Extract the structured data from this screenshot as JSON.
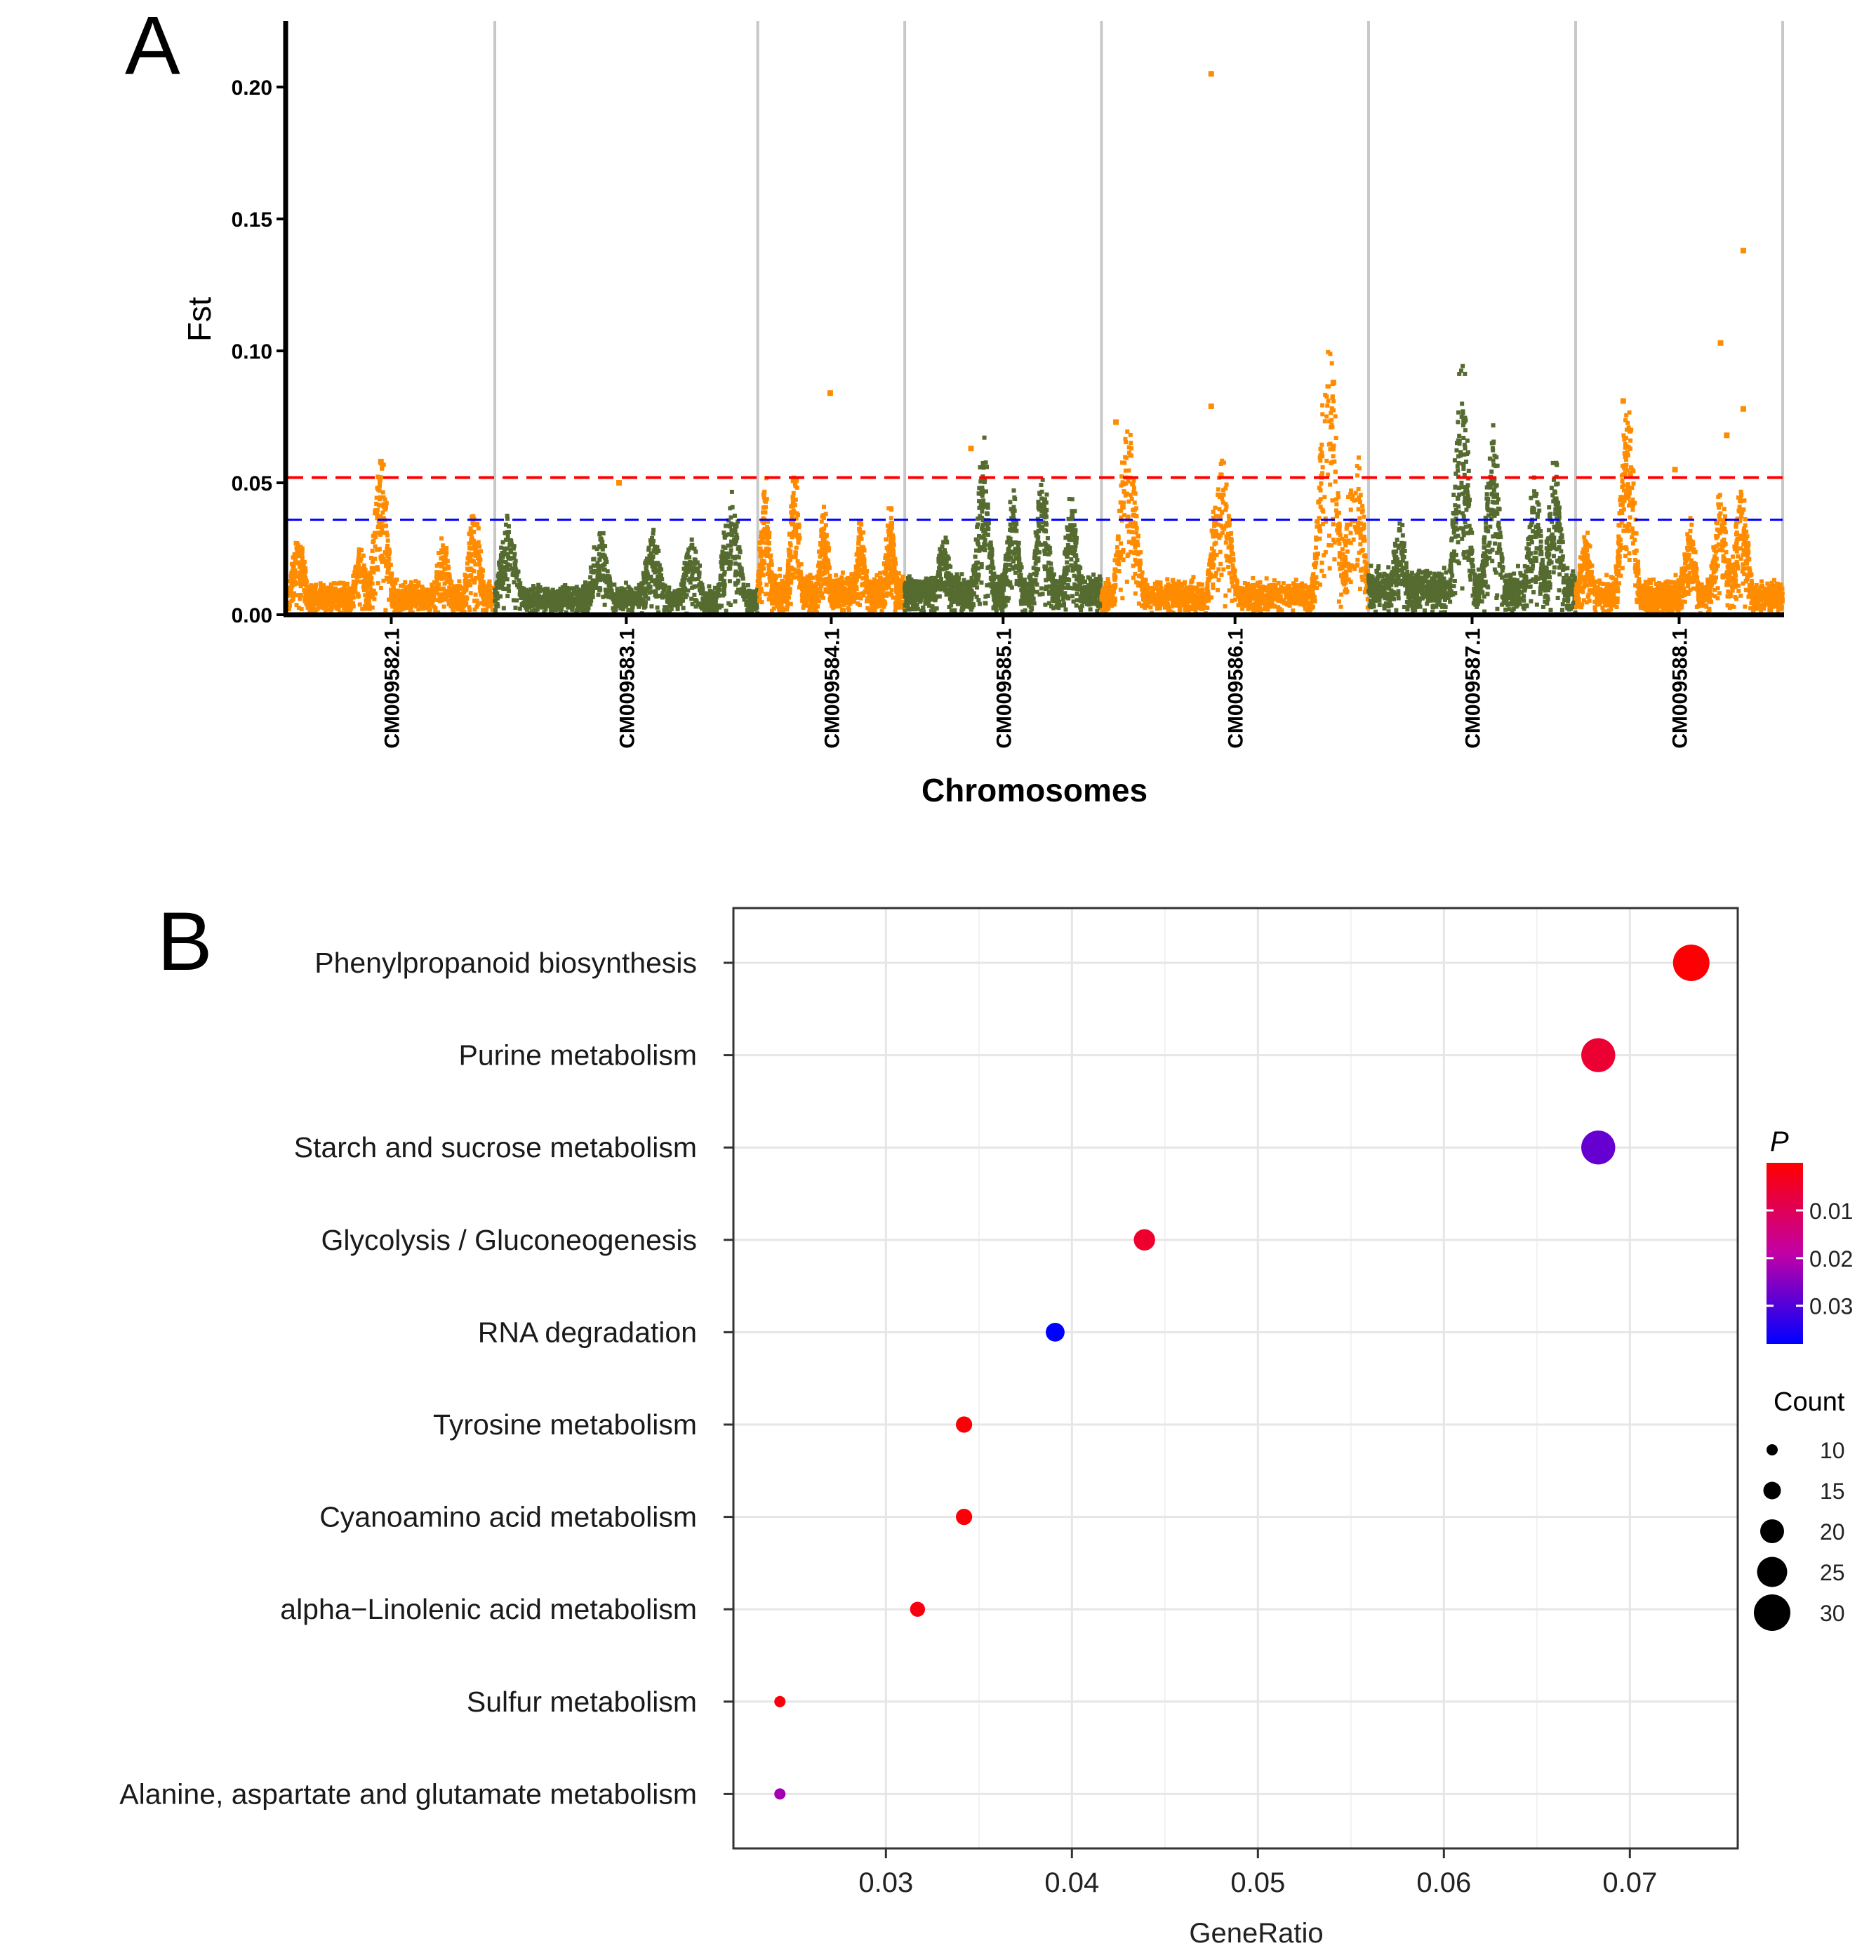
{
  "chart_data": [
    {
      "panel": "A",
      "type": "scatter",
      "subtype": "manhattan",
      "xlabel": "Chromosomes",
      "ylabel": "Fst",
      "ylim": [
        0,
        0.225
      ],
      "y_ticks": [
        "0.00",
        "0.05",
        "0.10",
        "0.15",
        "0.20"
      ],
      "y_tick_values": [
        0,
        0.05,
        0.1,
        0.15,
        0.2
      ],
      "thresholds": [
        {
          "name": "upper-threshold",
          "value": 0.052,
          "color": "#ff0000"
        },
        {
          "name": "lower-threshold",
          "value": 0.036,
          "color": "#0000ff"
        }
      ],
      "colors": {
        "odd": "#ff8c00",
        "even": "#556b2f"
      },
      "chromosomes": [
        {
          "name": "CM009582.1",
          "start": 0,
          "end": 1,
          "base": 0.007,
          "peaks": [
            [
              0.05,
              0.03
            ],
            [
              0.35,
              0.025
            ],
            [
              0.45,
              0.06
            ],
            [
              0.75,
              0.028
            ],
            [
              0.9,
              0.04
            ]
          ]
        },
        {
          "name": "CM009583.1",
          "start": 1,
          "end": 2.27,
          "base": 0.006,
          "peaks": [
            [
              0.05,
              0.035
            ],
            [
              0.4,
              0.032
            ],
            [
              0.6,
              0.03
            ],
            [
              0.75,
              0.028
            ],
            [
              0.9,
              0.045
            ]
          ]
        },
        {
          "name": "CM009584.1",
          "start": 2.27,
          "end": 2.98,
          "base": 0.01,
          "peaks": [
            [
              0.05,
              0.05
            ],
            [
              0.25,
              0.055
            ],
            [
              0.45,
              0.04
            ],
            [
              0.7,
              0.035
            ],
            [
              0.9,
              0.04
            ]
          ]
        },
        {
          "name": "CM009585.1",
          "start": 2.98,
          "end": 3.93,
          "base": 0.01,
          "peaks": [
            [
              0.2,
              0.03
            ],
            [
              0.4,
              0.062
            ],
            [
              0.55,
              0.045
            ],
            [
              0.7,
              0.055
            ],
            [
              0.85,
              0.045
            ]
          ]
        },
        {
          "name": "CM009586.1",
          "start": 3.93,
          "end": 5.22,
          "base": 0.008,
          "peaks": [
            [
              0.1,
              0.07
            ],
            [
              0.45,
              0.06
            ],
            [
              0.85,
              0.105
            ],
            [
              0.95,
              0.06
            ]
          ]
        },
        {
          "name": "CM009587.1",
          "start": 5.22,
          "end": 6.22,
          "base": 0.012,
          "peaks": [
            [
              0.15,
              0.035
            ],
            [
              0.45,
              0.098
            ],
            [
              0.6,
              0.07
            ],
            [
              0.8,
              0.05
            ],
            [
              0.9,
              0.057
            ]
          ]
        },
        {
          "name": "CM009588.1",
          "start": 6.22,
          "end": 7.22,
          "base": 0.008,
          "peaks": [
            [
              0.05,
              0.03
            ],
            [
              0.25,
              0.08
            ],
            [
              0.55,
              0.035
            ],
            [
              0.7,
              0.045
            ],
            [
              0.8,
              0.05
            ]
          ]
        }
      ],
      "outliers": [
        [
          0.45,
          0.058
        ],
        [
          1.6,
          0.05
        ],
        [
          2.62,
          0.084
        ],
        [
          3.3,
          0.063
        ],
        [
          4.0,
          0.073
        ],
        [
          4.46,
          0.205
        ],
        [
          4.46,
          0.079
        ],
        [
          5.05,
          0.088
        ],
        [
          6.45,
          0.081
        ],
        [
          6.7,
          0.055
        ],
        [
          6.92,
          0.103
        ],
        [
          7.03,
          0.138
        ],
        [
          7.03,
          0.078
        ],
        [
          6.95,
          0.068
        ]
      ]
    },
    {
      "panel": "B",
      "type": "scatter",
      "subtype": "dot-plot",
      "xlabel": "GeneRatio",
      "ylabel": "",
      "xlim": [
        0.0218,
        0.0758
      ],
      "x_ticks": [
        "0.03",
        "0.04",
        "0.05",
        "0.06",
        "0.07"
      ],
      "x_tick_values": [
        0.03,
        0.04,
        0.05,
        0.06,
        0.07
      ],
      "categories": [
        "Phenylpropanoid biosynthesis",
        "Purine metabolism",
        "Starch and sucrose metabolism",
        "Glycolysis / Gluconeogenesis",
        "RNA degradation",
        "Tyrosine metabolism",
        "Cyanoamino acid metabolism",
        "alpha−Linolenic acid metabolism",
        "Sulfur metabolism",
        "Alanine, aspartate and glutamate metabolism"
      ],
      "gene_ratio": [
        0.0733,
        0.0683,
        0.0683,
        0.0439,
        0.0391,
        0.0342,
        0.0342,
        0.0317,
        0.0243,
        0.0243
      ],
      "count": [
        30,
        28,
        28,
        18,
        16,
        14,
        14,
        13,
        10,
        10
      ],
      "p_value": [
        0.0005,
        0.006,
        0.028,
        0.005,
        0.038,
        0.001,
        0.001,
        0.002,
        0.001,
        0.022
      ],
      "legend_color": {
        "title": "P",
        "ticks": [
          "0.01",
          "0.02",
          "0.03"
        ],
        "tick_values": [
          0.01,
          0.02,
          0.03
        ],
        "range": [
          0.0,
          0.038
        ],
        "low_color": "#ff0000",
        "high_color": "#0000ff"
      },
      "legend_size": {
        "title": "Count",
        "labels": [
          "10",
          "15",
          "20",
          "25",
          "30"
        ],
        "values": [
          10,
          15,
          20,
          25,
          30
        ]
      }
    }
  ]
}
